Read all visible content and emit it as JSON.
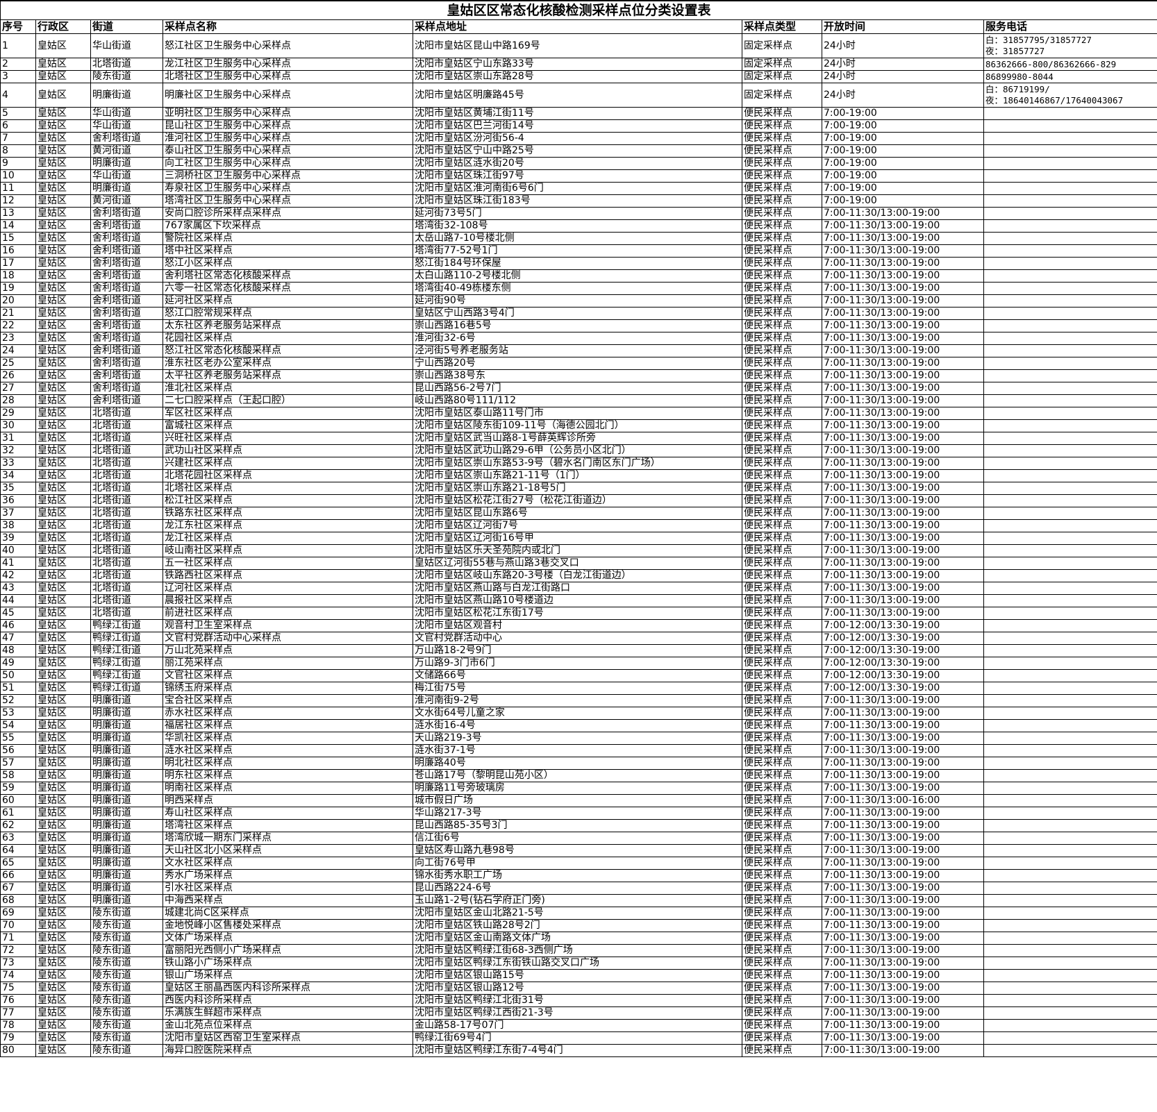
{
  "title": "皇姑区区常态化核酸检测采样点位分类设置表",
  "headers": [
    "序号",
    "行政区",
    "街道",
    "采样点名称",
    "采样点地址",
    "采样点类型",
    "开放时间",
    "服务电话"
  ],
  "rows": [
    [
      "1",
      "皇姑区",
      "华山街道",
      "怒江社区卫生服务中心采样点",
      "沈阳市皇姑区昆山中路169号",
      "固定采样点",
      "24小时",
      "白：31857795/31857727\n夜：31857727"
    ],
    [
      "2",
      "皇姑区",
      "北塔街道",
      "龙江社区卫生服务中心采样点",
      "沈阳市皇姑区宁山东路33号",
      "固定采样点",
      "24小时",
      "86362666-800/86362666-829"
    ],
    [
      "3",
      "皇姑区",
      "陵东街道",
      "北塔社区卫生服务中心采样点",
      "沈阳市皇姑区崇山东路28号",
      "固定采样点",
      "24小时",
      "86899980-8044"
    ],
    [
      "4",
      "皇姑区",
      "明廉街道",
      "明廉社区卫生服务中心采样点",
      "沈阳市皇姑区明廉路45号",
      "固定采样点",
      "24小时",
      "白：86719199/\n夜：18640146867/17640043067"
    ],
    [
      "5",
      "皇姑区",
      "华山街道",
      "亚明社区卫生服务中心采样点",
      "沈阳市皇姑区黄埔江街11号",
      "便民采样点",
      "7:00-19:00",
      ""
    ],
    [
      "6",
      "皇姑区",
      "华山街道",
      "昆山社区卫生服务中心采样点",
      "沈阳市皇姑区巴兰河街14号",
      "便民采样点",
      "7:00-19:00",
      ""
    ],
    [
      "7",
      "皇姑区",
      "舍利塔街道",
      "淮河社区卫生服务中心采样点",
      "沈阳市皇姑区汾河街56-4",
      "便民采样点",
      "7:00-19:00",
      ""
    ],
    [
      "8",
      "皇姑区",
      "黄河街道",
      "泰山社区卫生服务中心采样点",
      "沈阳市皇姑区宁山中路25号",
      "便民采样点",
      "7:00-19:00",
      ""
    ],
    [
      "9",
      "皇姑区",
      "明廉街道",
      "向工社区卫生服务中心采样点",
      "沈阳市皇姑区涟水街20号",
      "便民采样点",
      "7:00-19:00",
      ""
    ],
    [
      "10",
      "皇姑区",
      "华山街道",
      "三洞桥社区卫生服务中心采样点",
      "沈阳市皇姑区珠江街97号",
      "便民采样点",
      "7:00-19:00",
      ""
    ],
    [
      "11",
      "皇姑区",
      "明廉街道",
      "寿泉社区卫生服务中心采样点",
      "沈阳市皇姑区淮河南街6号6门",
      "便民采样点",
      "7:00-19:00",
      ""
    ],
    [
      "12",
      "皇姑区",
      "黄河街道",
      "塔湾社区卫生服务中心采样点",
      "沈阳市皇姑区珠江街183号",
      "便民采样点",
      "7:00-19:00",
      ""
    ],
    [
      "13",
      "皇姑区",
      "舍利塔街道",
      "安尚口腔诊所采样点采样点",
      "延河街73号5门",
      "便民采样点",
      "7:00-11:30/13:00-19:00",
      ""
    ],
    [
      "14",
      "皇姑区",
      "舍利塔街道",
      "767家属区下坎采样点",
      "塔湾街32-108号",
      "便民采样点",
      "7:00-11:30/13:00-19:00",
      ""
    ],
    [
      "15",
      "皇姑区",
      "舍利塔街道",
      "警院社区采样点",
      "太岳山路7-10号楼北侧",
      "便民采样点",
      "7:00-11:30/13:00-19:00",
      ""
    ],
    [
      "16",
      "皇姑区",
      "舍利塔街道",
      "塔中社区采样点",
      "塔湾街77-52号1门",
      "便民采样点",
      "7:00-11:30/13:00-19:00",
      ""
    ],
    [
      "17",
      "皇姑区",
      "舍利塔街道",
      "怒江小区采样点",
      "怒江街184号环保屋",
      "便民采样点",
      "7:00-11:30/13:00-19:00",
      ""
    ],
    [
      "18",
      "皇姑区",
      "舍利塔街道",
      "舍利塔社区常态化核酸采样点",
      "太白山路110-2号楼北侧",
      "便民采样点",
      "7:00-11:30/13:00-19:00",
      ""
    ],
    [
      "19",
      "皇姑区",
      "舍利塔街道",
      "六零一社区常态化核酸采样点",
      "塔湾街40-49栋楼东侧",
      "便民采样点",
      "7:00-11:30/13:00-19:00",
      ""
    ],
    [
      "20",
      "皇姑区",
      "舍利塔街道",
      "延河社区采样点",
      "延河街90号",
      "便民采样点",
      "7:00-11:30/13:00-19:00",
      ""
    ],
    [
      "21",
      "皇姑区",
      "舍利塔街道",
      "怒江口腔常规采样点",
      "皇姑区宁山西路3号4门",
      "便民采样点",
      "7:00-11:30/13:00-19:00",
      ""
    ],
    [
      "22",
      "皇姑区",
      "舍利塔街道",
      "太东社区养老服务站采样点",
      "崇山西路16巷5号",
      "便民采样点",
      "7:00-11:30/13:00-19:00",
      ""
    ],
    [
      "23",
      "皇姑区",
      "舍利塔街道",
      "花园社区采样点",
      "淮河街32-6号",
      "便民采样点",
      "7:00-11:30/13:00-19:00",
      ""
    ],
    [
      "24",
      "皇姑区",
      "舍利塔街道",
      "怒江社区常态化核酸采样点",
      "泾河街5号养老服务站",
      "便民采样点",
      "7:00-11:30/13:00-19:00",
      ""
    ],
    [
      "25",
      "皇姑区",
      "舍利塔街道",
      "淮东社区老办公室采样点",
      "宁山西路20号",
      "便民采样点",
      "7:00-11:30/13:00-19:00",
      ""
    ],
    [
      "26",
      "皇姑区",
      "舍利塔街道",
      "太平社区养老服务站采样点",
      "崇山西路38号东",
      "便民采样点",
      "7:00-11:30/13:00-19:00",
      ""
    ],
    [
      "27",
      "皇姑区",
      "舍利塔街道",
      "淮北社区采样点",
      "昆山西路56-2号7门",
      "便民采样点",
      "7:00-11:30/13:00-19:00",
      ""
    ],
    [
      "28",
      "皇姑区",
      "舍利塔街道",
      "二七口腔采样点（王起口腔）",
      "岐山西路80号111/112",
      "便民采样点",
      "7:00-11:30/13:00-19:00",
      ""
    ],
    [
      "29",
      "皇姑区",
      "北塔街道",
      "军区社区采样点",
      "沈阳市皇姑区泰山路11号门市",
      "便民采样点",
      "7:00-11:30/13:00-19:00",
      ""
    ],
    [
      "30",
      "皇姑区",
      "北塔街道",
      "富城社区采样点",
      "沈阳市皇姑区陵东街109-11号（海德公园北门）",
      "便民采样点",
      "7:00-11:30/13:00-19:00",
      ""
    ],
    [
      "31",
      "皇姑区",
      "北塔街道",
      "兴旺社区采样点",
      "沈阳市皇姑区武当山路8-1号薛英辉诊所旁",
      "便民采样点",
      "7:00-11:30/13:00-19:00",
      ""
    ],
    [
      "32",
      "皇姑区",
      "北塔街道",
      "武功山社区采样点",
      "沈阳市皇姑区武功山路29-6甲（公务员小区北门）",
      "便民采样点",
      "7:00-11:30/13:00-19:00",
      ""
    ],
    [
      "33",
      "皇姑区",
      "北塔街道",
      "兴建社区采样点",
      "沈阳市皇姑区崇山东路53-9号（碧水名门南区东门广场）",
      "便民采样点",
      "7:00-11:30/13:00-19:00",
      ""
    ],
    [
      "34",
      "皇姑区",
      "北塔街道",
      "北塔花园社区采样点",
      "沈阳市皇姑区崇山东路21-11号（1门）",
      "便民采样点",
      "7:00-11:30/13:00-19:00",
      ""
    ],
    [
      "35",
      "皇姑区",
      "北塔街道",
      "北塔社区采样点",
      "沈阳市皇姑区崇山东路21-18号5门",
      "便民采样点",
      "7:00-11:30/13:00-19:00",
      ""
    ],
    [
      "36",
      "皇姑区",
      "北塔街道",
      "松江社区采样点",
      "沈阳市皇姑区松花江街27号（松花江街道边）",
      "便民采样点",
      "7:00-11:30/13:00-19:00",
      ""
    ],
    [
      "37",
      "皇姑区",
      "北塔街道",
      "铁路东社区采样点",
      "沈阳市皇姑区昆山东路6号",
      "便民采样点",
      "7:00-11:30/13:00-19:00",
      ""
    ],
    [
      "38",
      "皇姑区",
      "北塔街道",
      "龙江东社区采样点",
      "沈阳市皇姑区辽河街7号",
      "便民采样点",
      "7:00-11:30/13:00-19:00",
      ""
    ],
    [
      "39",
      "皇姑区",
      "北塔街道",
      "龙江社区采样点",
      "沈阳市皇姑区辽河街16号甲",
      "便民采样点",
      "7:00-11:30/13:00-19:00",
      ""
    ],
    [
      "40",
      "皇姑区",
      "北塔街道",
      "岐山南社区采样点",
      "沈阳市皇姑区乐天圣苑院内或北门",
      "便民采样点",
      "7:00-11:30/13:00-19:00",
      ""
    ],
    [
      "41",
      "皇姑区",
      "北塔街道",
      "五一社区采样点",
      "皇姑区辽河街55巷与燕山路3巷交叉口",
      "便民采样点",
      "7:00-11:30/13:00-19:00",
      ""
    ],
    [
      "42",
      "皇姑区",
      "北塔街道",
      "铁路西社区采样点",
      "沈阳市皇姑区岐山东路20-3号楼（白龙江街道边）",
      "便民采样点",
      "7:00-11:30/13:00-19:00",
      ""
    ],
    [
      "43",
      "皇姑区",
      "北塔街道",
      "辽河社区采样点",
      "沈阳市皇姑区燕山路与白龙江街路口",
      "便民采样点",
      "7:00-11:30/13:00-19:00",
      ""
    ],
    [
      "44",
      "皇姑区",
      "北塔街道",
      "晨报社区采样点",
      "沈阳市皇姑区燕山路10号楼道边",
      "便民采样点",
      "7:00-11:30/13:00-19:00",
      ""
    ],
    [
      "45",
      "皇姑区",
      "北塔街道",
      "前进社区采样点",
      "沈阳市皇姑区松花江东街17号",
      "便民采样点",
      "7:00-11:30/13:00-19:00",
      ""
    ],
    [
      "46",
      "皇姑区",
      "鸭绿江街道",
      "观音村卫生室采样点",
      "沈阳市皇姑区观音村",
      "便民采样点",
      "7:00-12:00/13:30-19:00",
      ""
    ],
    [
      "47",
      "皇姑区",
      "鸭绿江街道",
      "文官村党群活动中心采样点",
      "文官村党群活动中心",
      "便民采样点",
      "7:00-12:00/13:30-19:00",
      ""
    ],
    [
      "48",
      "皇姑区",
      "鸭绿江街道",
      "万山北苑采样点",
      "万山路18-2号9门",
      "便民采样点",
      "7:00-12:00/13:30-19:00",
      ""
    ],
    [
      "49",
      "皇姑区",
      "鸭绿江街道",
      "丽江苑采样点",
      "万山路9-3门市6门",
      "便民采样点",
      "7:00-12:00/13:30-19:00",
      ""
    ],
    [
      "50",
      "皇姑区",
      "鸭绿江街道",
      "文官社区采样点",
      "文储路66号",
      "便民采样点",
      "7:00-12:00/13:30-19:00",
      ""
    ],
    [
      "51",
      "皇姑区",
      "鸭绿江街道",
      "锦绣玉府采样点",
      "梅江街75号",
      "便民采样点",
      "7:00-12:00/13:30-19:00",
      ""
    ],
    [
      "52",
      "皇姑区",
      "明廉街道",
      "宝合社区采样点",
      "淮河南街9-2号",
      "便民采样点",
      "7:00-11:30/13:00-19:00",
      ""
    ],
    [
      "53",
      "皇姑区",
      "明廉街道",
      "赤水社区采样点",
      "文水街64号儿童之家",
      "便民采样点",
      "7:00-11:30/13:00-19:00",
      ""
    ],
    [
      "54",
      "皇姑区",
      "明廉街道",
      "福居社区采样点",
      "涟水街16-4号",
      "便民采样点",
      "7:00-11:30/13:00-19:00",
      ""
    ],
    [
      "55",
      "皇姑区",
      "明廉街道",
      "华凯社区采样点",
      "天山路219-3号",
      "便民采样点",
      "7:00-11:30/13:00-19:00",
      ""
    ],
    [
      "56",
      "皇姑区",
      "明廉街道",
      "涟水社区采样点",
      "涟水街37-1号",
      "便民采样点",
      "7:00-11:30/13:00-19:00",
      ""
    ],
    [
      "57",
      "皇姑区",
      "明廉街道",
      "明北社区采样点",
      "明廉路40号",
      "便民采样点",
      "7:00-11:30/13:00-19:00",
      ""
    ],
    [
      "58",
      "皇姑区",
      "明廉街道",
      "明东社区采样点",
      "苍山路17号（黎明昆山苑小区）",
      "便民采样点",
      "7:00-11:30/13:00-19:00",
      ""
    ],
    [
      "59",
      "皇姑区",
      "明廉街道",
      "明南社区采样点",
      "明廉路11号旁玻璃房",
      "便民采样点",
      "7:00-11:30/13:00-19:00",
      ""
    ],
    [
      "60",
      "皇姑区",
      "明廉街道",
      "明西采样点",
      "城市假日广场",
      "便民采样点",
      "7:00-11:30/13:00-16:00",
      ""
    ],
    [
      "61",
      "皇姑区",
      "明廉街道",
      "寿山社区采样点",
      "华山路217-3号",
      "便民采样点",
      "7:00-11:30/13:00-19:00",
      ""
    ],
    [
      "62",
      "皇姑区",
      "明廉街道",
      "塔湾社区采样点",
      "昆山西路85-35号3门",
      "便民采样点",
      "7:00-11:30/13:00-19:00",
      ""
    ],
    [
      "63",
      "皇姑区",
      "明廉街道",
      "塔湾欣城一期东门采样点",
      "信江街6号",
      "便民采样点",
      "7:00-11:30/13:00-19:00",
      ""
    ],
    [
      "64",
      "皇姑区",
      "明廉街道",
      "天山社区北小区采样点",
      "皇姑区寿山路九巷98号",
      "便民采样点",
      "7:00-11:30/13:00-19:00",
      ""
    ],
    [
      "65",
      "皇姑区",
      "明廉街道",
      "文水社区采样点",
      "向工街76号甲",
      "便民采样点",
      "7:00-11:30/13:00-19:00",
      ""
    ],
    [
      "66",
      "皇姑区",
      "明廉街道",
      "秀水广场采样点",
      "锦水街秀水职工广场",
      "便民采样点",
      "7:00-11:30/13:00-19:00",
      ""
    ],
    [
      "67",
      "皇姑区",
      "明廉街道",
      "引水社区采样点",
      "昆山西路224-6号",
      "便民采样点",
      "7:00-11:30/13:00-19:00",
      ""
    ],
    [
      "68",
      "皇姑区",
      "明廉街道",
      "中海西采样点",
      "玉山路1-2号(钻石学府正门旁)",
      "便民采样点",
      "7:00-11:30/13:00-19:00",
      ""
    ],
    [
      "69",
      "皇姑区",
      "陵东街道",
      "城建北尚C区采样点",
      "沈阳市皇姑区金山北路21-5号",
      "便民采样点",
      "7:00-11:30/13:00-19:00",
      ""
    ],
    [
      "70",
      "皇姑区",
      "陵东街道",
      "金地悦峰小区售楼处采样点",
      "沈阳市皇姑区铁山路28号2门",
      "便民采样点",
      "7:00-11:30/13:00-19:00",
      ""
    ],
    [
      "71",
      "皇姑区",
      "陵东街道",
      "文体广场采样点",
      "沈阳市皇姑区金山南路文体广场",
      "便民采样点",
      "7:00-11:30/13:00-19:00",
      ""
    ],
    [
      "72",
      "皇姑区",
      "陵东街道",
      "富丽阳光西侧小广场采样点",
      "沈阳市皇姑区鸭绿江街68-3西侧广场",
      "便民采样点",
      "7:00-11:30/13:00-19:00",
      ""
    ],
    [
      "73",
      "皇姑区",
      "陵东街道",
      "铁山路小广场采样点",
      "沈阳市皇姑区鸭绿江东街铁山路交叉口广场",
      "便民采样点",
      "7:00-11:30/13:00-19:00",
      ""
    ],
    [
      "74",
      "皇姑区",
      "陵东街道",
      "银山广场采样点",
      "沈阳市皇姑区银山路15号",
      "便民采样点",
      "7:00-11:30/13:00-19:00",
      ""
    ],
    [
      "75",
      "皇姑区",
      "陵东街道",
      "皇姑区王丽晶西医内科诊所采样点",
      "沈阳市皇姑区银山路12号",
      "便民采样点",
      "7:00-11:30/13:00-19:00",
      ""
    ],
    [
      "76",
      "皇姑区",
      "陵东街道",
      "西医内科诊所采样点",
      "沈阳市皇姑区鸭绿江北街31号",
      "便民采样点",
      "7:00-11:30/13:00-19:00",
      ""
    ],
    [
      "77",
      "皇姑区",
      "陵东街道",
      "乐满族生鲜超市采样点",
      "沈阳市皇姑区鸭绿江西街21-3号",
      "便民采样点",
      "7:00-11:30/13:00-19:00",
      ""
    ],
    [
      "78",
      "皇姑区",
      "陵东街道",
      "金山北苑点位采样点",
      "金山路58-17号07门",
      "便民采样点",
      "7:00-11:30/13:00-19:00",
      ""
    ],
    [
      "79",
      "皇姑区",
      "陵东街道",
      "沈阳市皇姑区西窑卫生室采样点",
      "鸭绿江街69号4门",
      "便民采样点",
      "7:00-11:30/13:00-19:00",
      ""
    ],
    [
      "80",
      "皇姑区",
      "陵东街道",
      "海异口腔医院采样点",
      "沈阳市皇姑区鸭绿江东街7-4号4门",
      "便民采样点",
      "7:00-11:30/13:00-19:00",
      ""
    ]
  ]
}
